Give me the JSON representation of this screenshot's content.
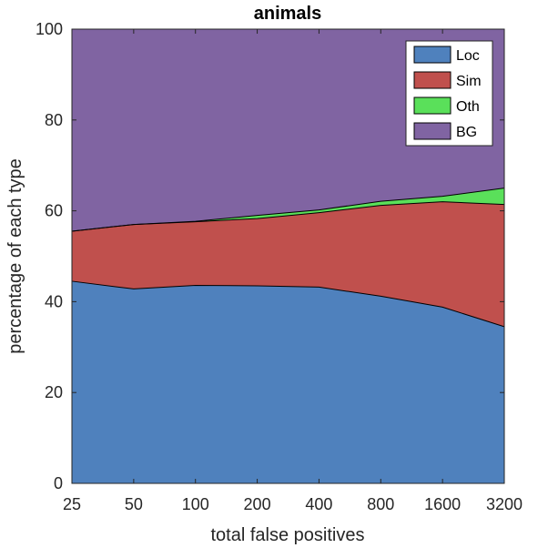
{
  "chart_data": {
    "type": "area",
    "stacked": true,
    "normalized_percent": true,
    "title": "animals",
    "xlabel": "total false positives",
    "ylabel": "percentage of each type",
    "x_categories": [
      "25",
      "50",
      "100",
      "200",
      "400",
      "800",
      "1600",
      "3200"
    ],
    "ylim": [
      0,
      100
    ],
    "yticks": [
      0,
      20,
      40,
      60,
      80,
      100
    ],
    "legend_position": "top-right",
    "series": [
      {
        "name": "Loc",
        "color": "#4F81BD",
        "values": [
          44.5,
          42.8,
          43.6,
          43.5,
          43.2,
          41.2,
          38.8,
          34.5
        ]
      },
      {
        "name": "Sim",
        "color": "#C0504D",
        "values": [
          11.0,
          14.2,
          14.0,
          14.8,
          16.4,
          20.0,
          23.2,
          26.9
        ]
      },
      {
        "name": "Oth",
        "color": "#5AE05A",
        "values": [
          0.0,
          0.0,
          0.1,
          0.7,
          0.6,
          0.9,
          1.2,
          3.6
        ]
      },
      {
        "name": "BG",
        "color": "#8064A2",
        "values": [
          44.5,
          43.0,
          42.3,
          41.0,
          39.8,
          37.9,
          36.8,
          35.0
        ]
      }
    ]
  }
}
